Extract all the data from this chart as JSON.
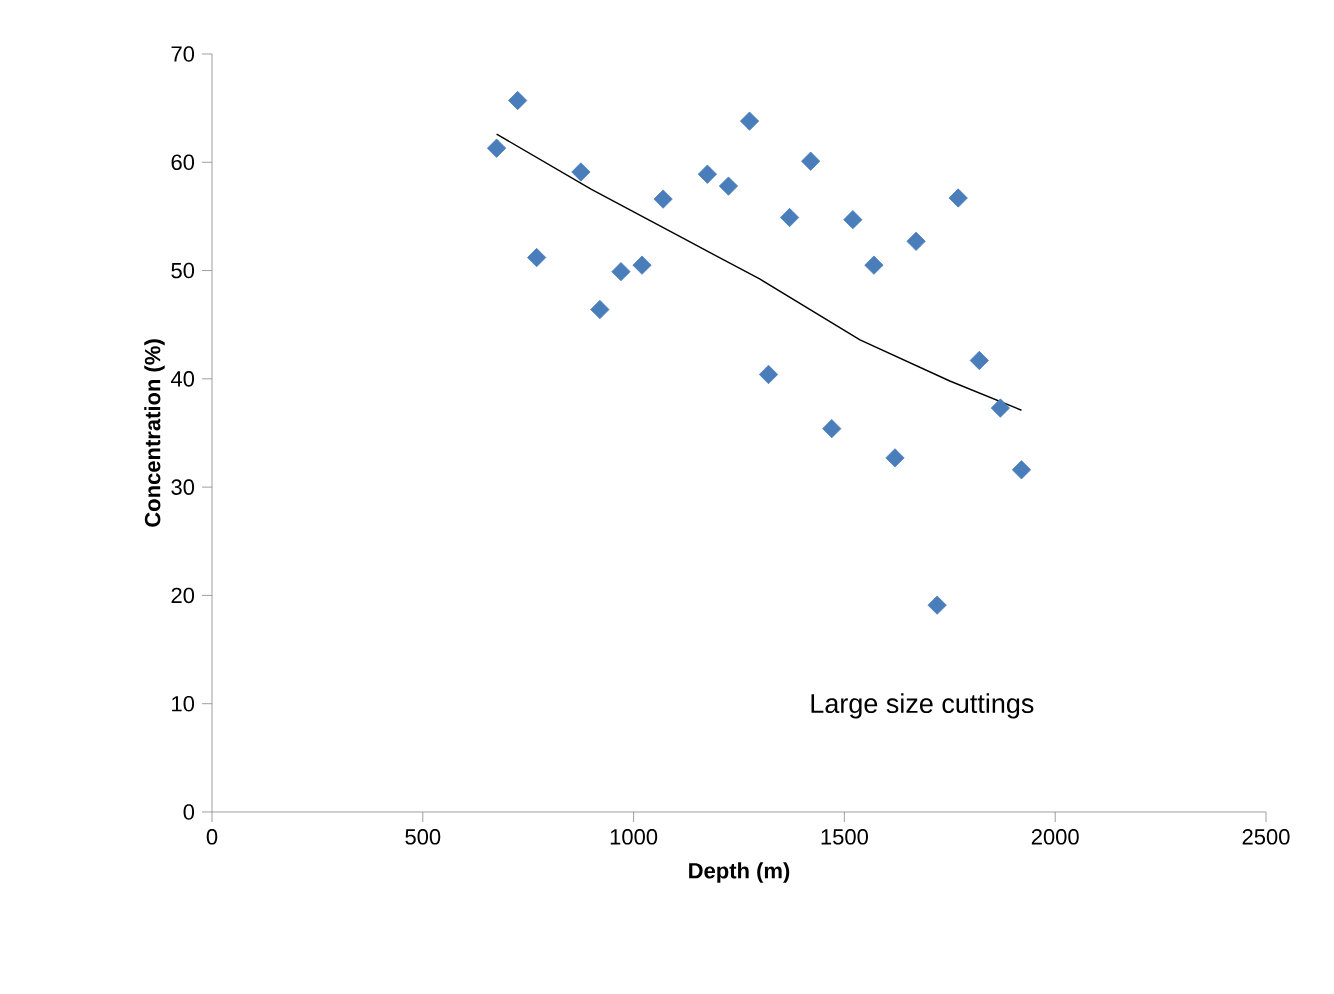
{
  "chart_data": {
    "type": "scatter",
    "xlabel": "Depth (m)",
    "ylabel": "Concentration (%)",
    "annotations": [
      "Large size cuttings"
    ],
    "xlim": [
      0,
      2500
    ],
    "ylim": [
      0,
      70
    ],
    "xticks": [
      0,
      500,
      1000,
      1500,
      2000,
      2500
    ],
    "yticks": [
      0,
      10,
      20,
      30,
      40,
      50,
      60,
      70
    ],
    "grid": false,
    "marker": "diamond",
    "series": [
      {
        "color": "#4a7ebb",
        "x": [
          675,
          725,
          770,
          875,
          920,
          970,
          1020,
          1070,
          1175,
          1225,
          1275,
          1320,
          1370,
          1420,
          1470,
          1520,
          1570,
          1620,
          1670,
          1720,
          1770,
          1820,
          1870,
          1920
        ],
        "values": [
          61.3,
          65.7,
          51.2,
          59.1,
          46.4,
          49.9,
          50.5,
          56.6,
          58.9,
          57.8,
          63.8,
          40.4,
          54.9,
          60.1,
          35.4,
          54.7,
          50.5,
          32.7,
          52.7,
          19.1,
          56.7,
          41.7,
          37.3,
          31.6
        ]
      },
      {
        "type": "line",
        "color": "#000000",
        "marker": "none",
        "line_style": "solid",
        "x": [
          675,
          900,
          1126,
          1300,
          1537,
          1750,
          1920
        ],
        "values": [
          62.6,
          57.5,
          52.8,
          49.2,
          43.6,
          39.8,
          37.1
        ]
      }
    ]
  }
}
